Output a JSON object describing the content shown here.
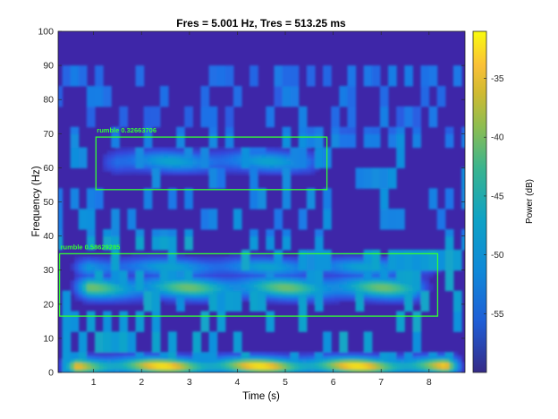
{
  "chart_data": {
    "type": "heatmap",
    "title": "Fres = 5.001 Hz, Tres = 513.25 ms",
    "xlabel": "Time (s)",
    "ylabel": "Frequency (Hz)",
    "xlim": [
      0.26,
      8.75
    ],
    "ylim": [
      0,
      100
    ],
    "x_ticks": [
      1,
      2,
      3,
      4,
      5,
      6,
      7,
      8
    ],
    "y_ticks": [
      0,
      10,
      20,
      30,
      40,
      50,
      60,
      70,
      80,
      90,
      100
    ],
    "colorbar": {
      "label": "Power (dB)",
      "range": [
        -60,
        -31
      ],
      "ticks": [
        -35,
        -40,
        -45,
        -50,
        -55
      ],
      "colormap": "parula"
    },
    "grid": false,
    "bands": [
      {
        "freq_center": 2,
        "half_width": 2.6,
        "t_start": 0.26,
        "t_end": 8.75,
        "peak_dB": -32
      },
      {
        "freq_center": 25,
        "half_width": 3.2,
        "t_start": 0.5,
        "t_end": 8.1,
        "peak_dB": -40
      },
      {
        "freq_center": 31,
        "half_width": 2.6,
        "t_start": 0.5,
        "t_end": 8.3,
        "peak_dB": -47
      },
      {
        "freq_center": 62,
        "half_width": 3.0,
        "t_start": 1.1,
        "t_end": 5.9,
        "peak_dB": -47
      }
    ],
    "annotations": [
      {
        "label": "rumble 0.32663706",
        "x_range": [
          1.05,
          5.87
        ],
        "y_range": [
          53.6,
          69
        ]
      },
      {
        "label": "rumble 0.58629285",
        "x_range": [
          0.29,
          8.18
        ],
        "y_range": [
          16.5,
          34.8
        ]
      }
    ]
  },
  "colors": {
    "box": "#33ff33",
    "background_low": "#3e26a8",
    "high": "#f9fb0e"
  }
}
